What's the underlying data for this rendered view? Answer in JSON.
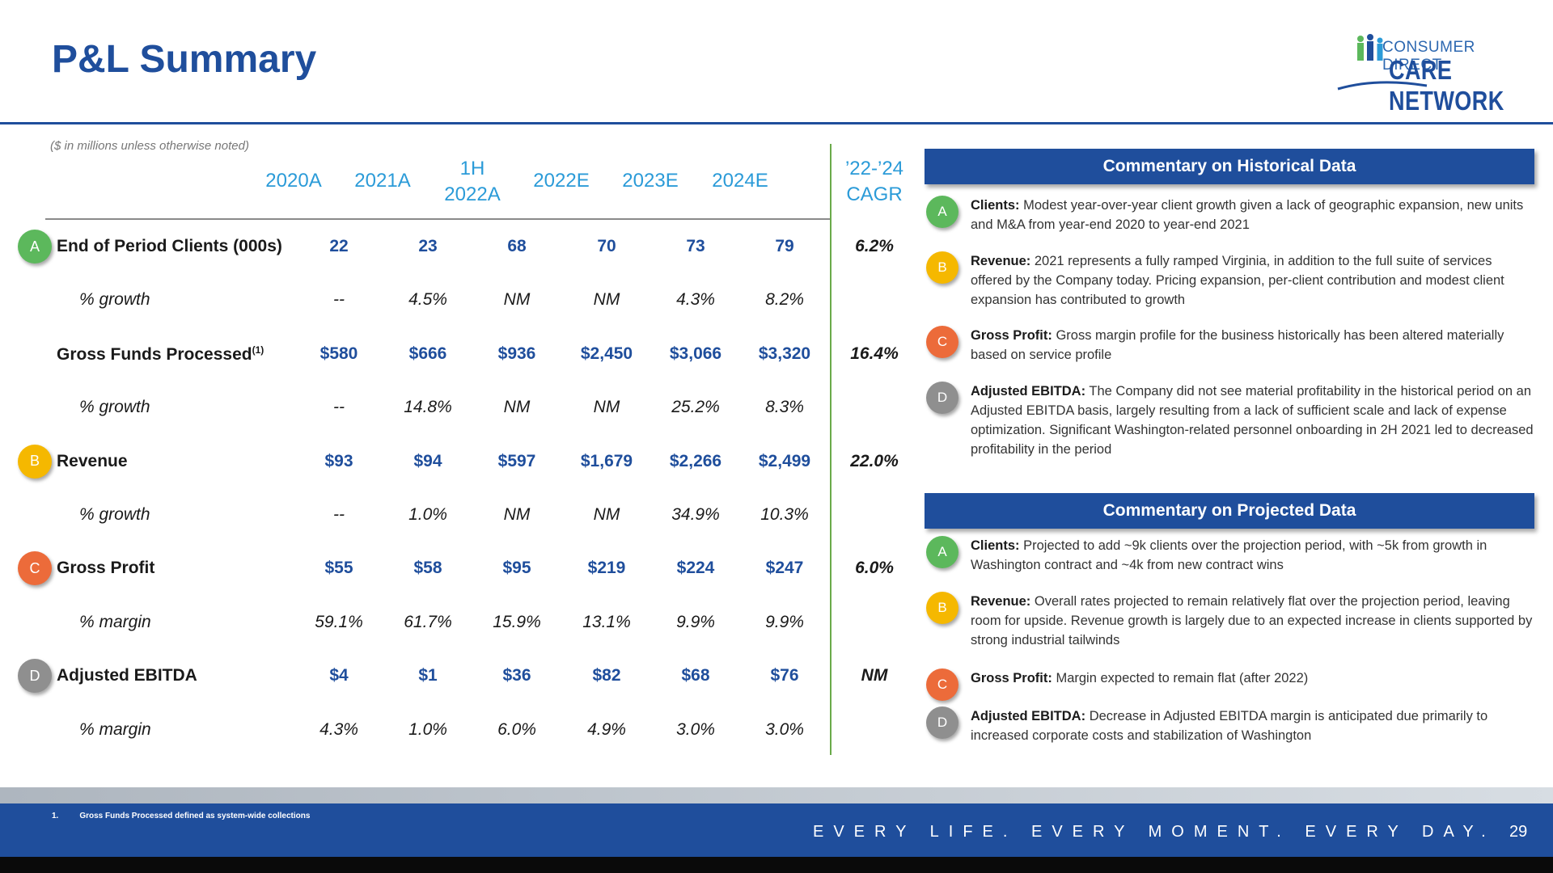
{
  "header": {
    "title": "P&L Summary"
  },
  "logo": {
    "line1": "CONSUMER DIRECT",
    "line2": "CARE NETWORK"
  },
  "table": {
    "note": "($ in millions unless otherwise noted)",
    "columns": [
      {
        "line1": "2020A",
        "line2": ""
      },
      {
        "line1": "2021A",
        "line2": ""
      },
      {
        "line1": "1H",
        "line2": "2022A"
      },
      {
        "line1": "2022E",
        "line2": ""
      },
      {
        "line1": "2023E",
        "line2": ""
      },
      {
        "line1": "2024E",
        "line2": ""
      },
      {
        "line1": "’22-’24",
        "line2": "CAGR"
      }
    ],
    "rows": [
      {
        "badge": "A",
        "label": "End of Period Clients (000s)",
        "sup": "",
        "values": [
          "22",
          "23",
          "68",
          "70",
          "73",
          "79"
        ],
        "cagr": "6.2%"
      },
      {
        "badge": "",
        "label": "% growth",
        "sup": "",
        "values": [
          "--",
          "4.5%",
          "NM",
          "NM",
          "4.3%",
          "8.2%"
        ],
        "cagr": ""
      },
      {
        "badge": "",
        "label": "Gross Funds Processed",
        "sup": "(1)",
        "values": [
          "$580",
          "$666",
          "$936",
          "$2,450",
          "$3,066",
          "$3,320"
        ],
        "cagr": "16.4%"
      },
      {
        "badge": "",
        "label": "% growth",
        "sup": "",
        "values": [
          "--",
          "14.8%",
          "NM",
          "NM",
          "25.2%",
          "8.3%"
        ],
        "cagr": ""
      },
      {
        "badge": "B",
        "label": "Revenue",
        "sup": "",
        "values": [
          "$93",
          "$94",
          "$597",
          "$1,679",
          "$2,266",
          "$2,499"
        ],
        "cagr": "22.0%"
      },
      {
        "badge": "",
        "label": "% growth",
        "sup": "",
        "values": [
          "--",
          "1.0%",
          "NM",
          "NM",
          "34.9%",
          "10.3%"
        ],
        "cagr": ""
      },
      {
        "badge": "C",
        "label": "Gross Profit",
        "sup": "",
        "values": [
          "$55",
          "$58",
          "$95",
          "$219",
          "$224",
          "$247"
        ],
        "cagr": "6.0%"
      },
      {
        "badge": "",
        "label": "% margin",
        "sup": "",
        "values": [
          "59.1%",
          "61.7%",
          "15.9%",
          "13.1%",
          "9.9%",
          "9.9%"
        ],
        "cagr": ""
      },
      {
        "badge": "D",
        "label": "Adjusted EBITDA",
        "sup": "",
        "values": [
          "$4",
          "$1",
          "$36",
          "$82",
          "$68",
          "$76"
        ],
        "cagr": "NM"
      },
      {
        "badge": "",
        "label": "% margin",
        "sup": "",
        "values": [
          "4.3%",
          "1.0%",
          "6.0%",
          "4.9%",
          "3.0%",
          "3.0%"
        ],
        "cagr": ""
      }
    ]
  },
  "historical": {
    "heading": "Commentary on Historical Data",
    "items": [
      {
        "badge": "A",
        "term": "Clients:",
        "text": "Modest year-over-year client growth given a lack of geographic expansion, new units and M&A from year-end 2020 to year-end 2021"
      },
      {
        "badge": "B",
        "term": "Revenue:",
        "text": "2021 represents a fully ramped Virginia, in addition to the full suite of services offered by the Company today. Pricing expansion, per-client contribution and modest client expansion has contributed to growth"
      },
      {
        "badge": "C",
        "term": "Gross Profit:",
        "text": "Gross margin profile for the business historically has been altered materially based on service profile"
      },
      {
        "badge": "D",
        "term": "Adjusted EBITDA:",
        "text": "The Company did not see material profitability in the historical period on an Adjusted EBITDA basis, largely resulting from a lack of sufficient scale and lack of expense optimization. Significant Washington-related personnel onboarding in 2H 2021 led to decreased profitability in the period"
      }
    ]
  },
  "projected": {
    "heading": "Commentary on Projected Data",
    "items": [
      {
        "badge": "A",
        "term": "Clients:",
        "text": "Projected to add ~9k clients over the projection period, with ~5k from growth in Washington contract and ~4k from new contract wins"
      },
      {
        "badge": "B",
        "term": "Revenue:",
        "text": "Overall rates projected to remain relatively flat over the projection period, leaving room for upside. Revenue growth is largely due to an expected increase in clients supported by strong industrial tailwinds"
      },
      {
        "badge": "C",
        "term": "Gross Profit:",
        "text": "Margin expected to remain flat (after 2022)"
      },
      {
        "badge": "D",
        "term": "Adjusted EBITDA:",
        "text": "Decrease in Adjusted EBITDA margin is anticipated due primarily to increased corporate costs and stabilization of Washington"
      }
    ]
  },
  "footer": {
    "footnote_num": "1.",
    "footnote_text": "Gross Funds Processed defined as system-wide collections",
    "tagline": "EVERY LIFE. EVERY MOMENT. EVERY DAY.",
    "page": "29"
  }
}
